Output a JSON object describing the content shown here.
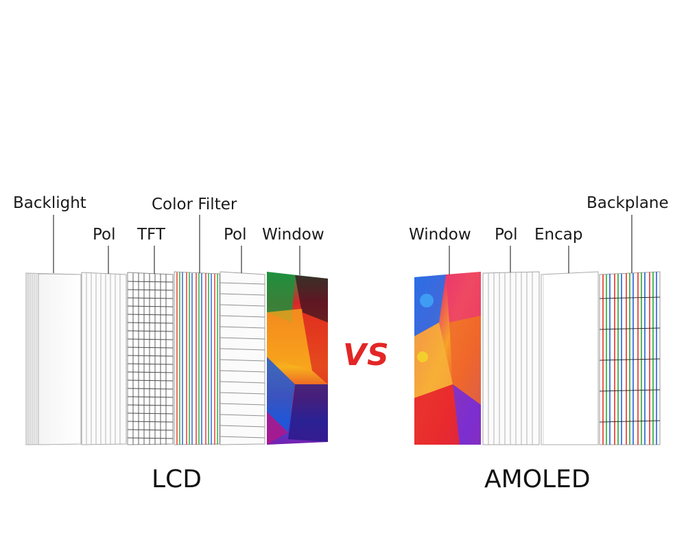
{
  "lcd": {
    "title": "LCD",
    "layers": [
      "Backlight",
      "Pol",
      "TFT",
      "Color Filter",
      "Pol",
      "Window"
    ]
  },
  "amoled": {
    "title": "AMOLED",
    "layers": [
      "Window",
      "Pol",
      "Encap",
      "Backplane"
    ]
  },
  "vs_label": "VS",
  "colors": {
    "vs": "#e32626",
    "leader_line": "#333333",
    "panel_outline": "#9a9a9a",
    "subpixel_red": "#e8483f",
    "subpixel_green": "#3cb34a",
    "subpixel_blue": "#3d6fd9"
  }
}
